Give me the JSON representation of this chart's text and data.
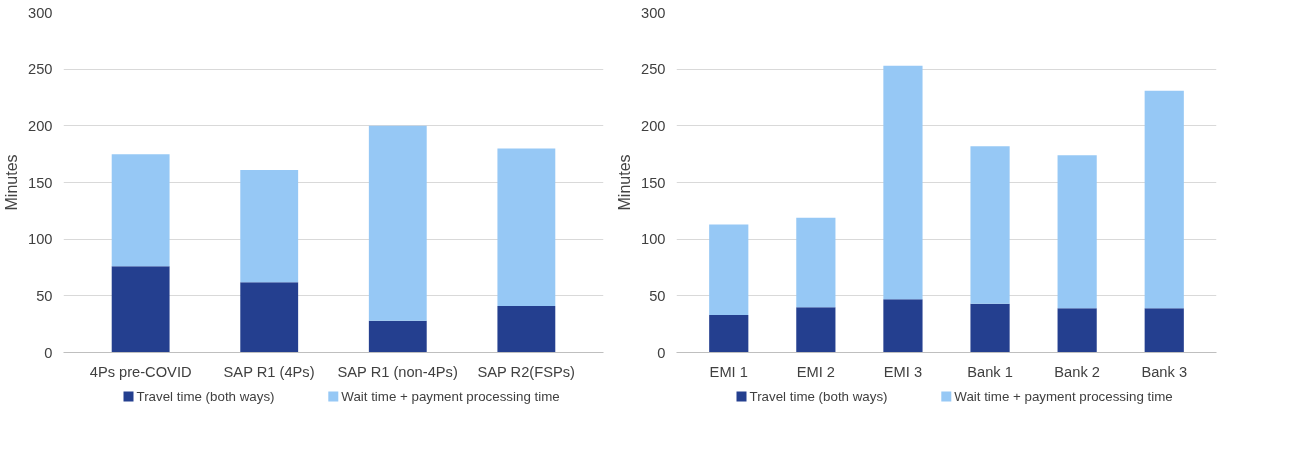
{
  "chart_data": [
    {
      "type": "bar",
      "stacked": true,
      "ylabel": "Minutes",
      "categories": [
        "4Ps pre-COVID",
        "SAP R1 (4Ps)",
        "SAP R1 (non-4Ps)",
        "SAP R2(FSPs)"
      ],
      "ylim": [
        0,
        300
      ],
      "yticks": [
        0,
        50,
        100,
        150,
        200,
        250,
        300
      ],
      "grid": "y",
      "legend": "bottom",
      "series": [
        {
          "name": "Travel time (both ways)",
          "color": "#243f8f",
          "values": [
            76,
            62,
            28,
            41
          ]
        },
        {
          "name": "Wait time + payment processing time",
          "color": "#96c8f5",
          "values": [
            99,
            99,
            172,
            139
          ]
        }
      ]
    },
    {
      "type": "bar",
      "stacked": true,
      "ylabel": "Minutes",
      "categories": [
        "EMI 1",
        "EMI 2",
        "EMI 3",
        "Bank 1",
        "Bank 2",
        "Bank 3"
      ],
      "ylim": [
        0,
        300
      ],
      "yticks": [
        0,
        50,
        100,
        150,
        200,
        250,
        300
      ],
      "grid": "y",
      "legend": "bottom",
      "series": [
        {
          "name": "Travel time (both ways)",
          "color": "#243f8f",
          "values": [
            33,
            40,
            47,
            43,
            39,
            39
          ]
        },
        {
          "name": "Wait time + payment processing time",
          "color": "#96c8f5",
          "values": [
            80,
            79,
            206,
            139,
            135,
            192
          ]
        }
      ]
    }
  ]
}
